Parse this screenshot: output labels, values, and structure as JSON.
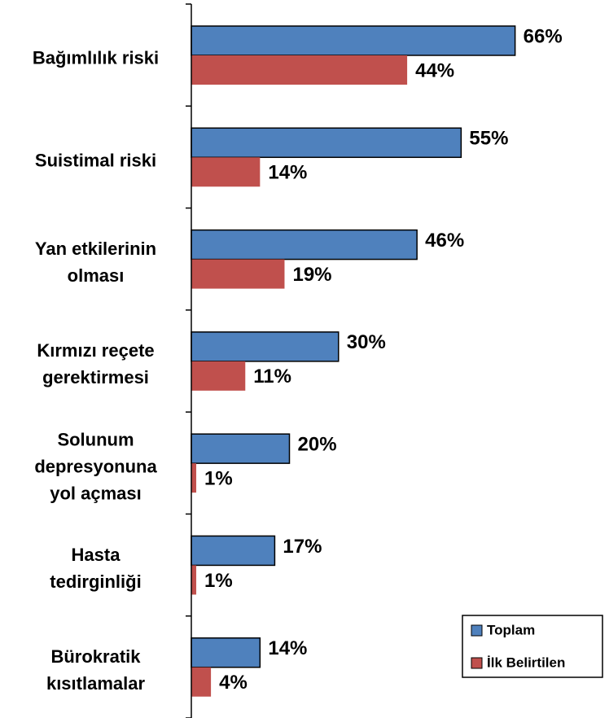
{
  "chart_data": {
    "type": "hbar",
    "categories": [
      "Bağımlılık riski",
      "Suistimal riski",
      "Yan etkilerinin\nolması",
      "Kırmızı reçete\ngerektirmesi",
      "Solunum\ndepresyonuna\nyol açması",
      "Hasta\ntedirginliği",
      "Bürokratik\nkısıtlamalar"
    ],
    "series": [
      {
        "name": "Toplam",
        "color": "#4f81bd",
        "values": [
          66,
          55,
          46,
          30,
          20,
          17,
          14
        ],
        "value_labels": [
          "66%",
          "55%",
          "46%",
          "30%",
          "20%",
          "17%",
          "14%"
        ]
      },
      {
        "name": "İlk Belirtilen",
        "color": "#c0504d",
        "values": [
          44,
          14,
          19,
          11,
          1,
          1,
          4
        ],
        "value_labels": [
          "44%",
          "14%",
          "19%",
          "11%",
          "1%",
          "1%",
          "4%"
        ]
      }
    ],
    "xlim": [
      0,
      80
    ],
    "legend": "lower-right"
  }
}
